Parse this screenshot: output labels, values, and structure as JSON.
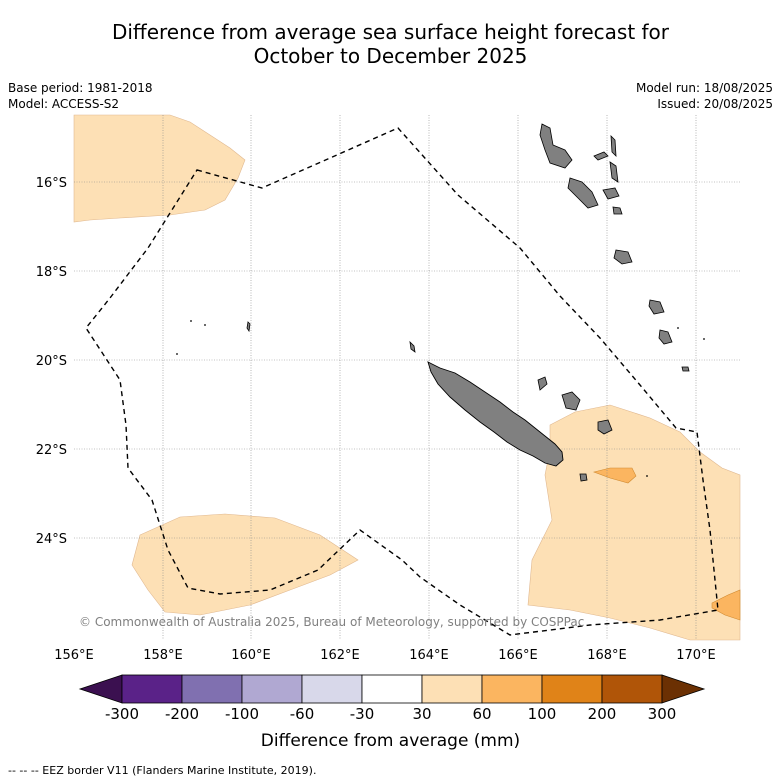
{
  "title_line1": "Difference from average sea surface height forecast for",
  "title_line2": "October to December 2025",
  "meta": {
    "base_period": "Base period: 1981-2018",
    "model": "Model: ACCESS-S2",
    "model_run": "Model run: 18/08/2025",
    "issued": "Issued: 20/08/2025"
  },
  "copyright": "© Commonwealth of Australia 2025, Bureau of Meteorology, supported by COSPPac",
  "lat_labels": [
    "16°S",
    "18°S",
    "20°S",
    "22°S",
    "24°S"
  ],
  "lon_labels": [
    "156°E",
    "158°E",
    "160°E",
    "162°E",
    "164°E",
    "166°E",
    "168°E",
    "170°E"
  ],
  "colorbar": {
    "ticks": [
      "-300",
      "-200",
      "-100",
      "-60",
      "-30",
      "30",
      "60",
      "100",
      "200",
      "300"
    ],
    "colors": [
      "#3b1050",
      "#5a2288",
      "#8070b0",
      "#b0a8d2",
      "#d8d8ea",
      "#ffffff",
      "#fde0b5",
      "#fbb560",
      "#e08318",
      "#b05508",
      "#6b3003"
    ],
    "label": "Difference from average (mm)"
  },
  "legend_footer": "-- -- -- EEZ border V11 (Flanders Marine Institute, 2019).",
  "colors": {
    "land": "#808080",
    "anomaly_30_60": "#fde0b5",
    "anomaly_60_100": "#fbb560"
  }
}
